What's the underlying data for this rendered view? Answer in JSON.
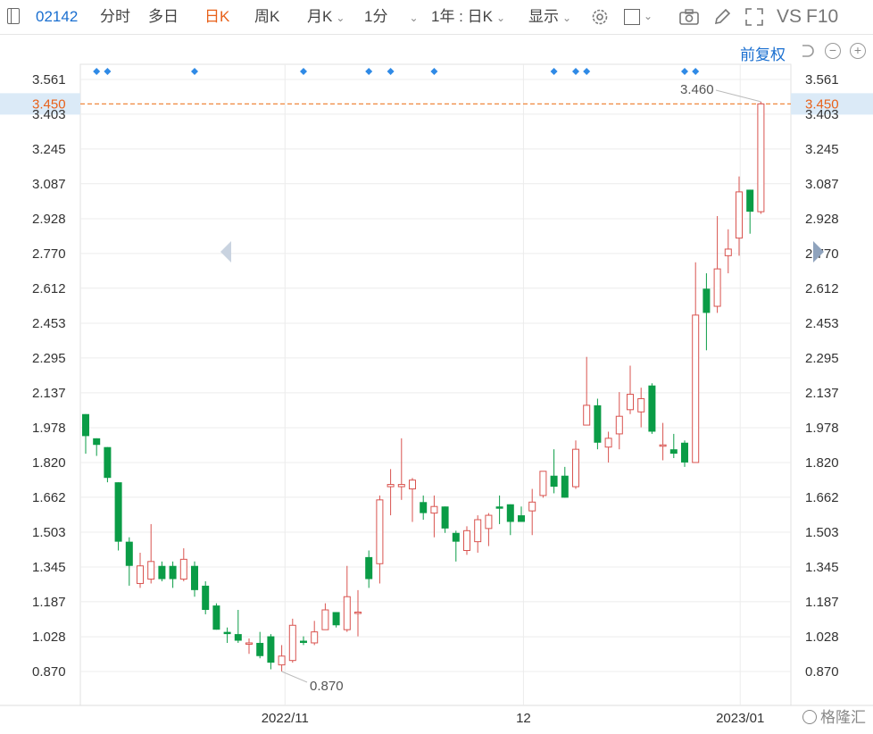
{
  "toolbar": {
    "code": "02142",
    "tabs": [
      "分时",
      "多日",
      "日K",
      "周K",
      "月K",
      "1分"
    ],
    "active_tab": "日K",
    "range_select": "1年 : 日K",
    "display_select": "显示",
    "vs_label": "VS",
    "f10_label": "F10",
    "icons": [
      "sidebar-toggle-icon",
      "gear-icon",
      "square-box-icon",
      "camera-icon",
      "pencil-icon",
      "fullscreen-icon"
    ]
  },
  "subbar": {
    "adjust_label": "前复权",
    "icons": [
      "undo-icon",
      "zoom-out-icon",
      "zoom-in-icon"
    ]
  },
  "watermark": "格隆汇",
  "chart_data": {
    "type": "candlestick",
    "ylim": [
      0.78,
      3.64
    ],
    "yticks": [
      "3.561",
      "3.403",
      "3.245",
      "3.087",
      "2.928",
      "2.770",
      "2.612",
      "2.453",
      "2.295",
      "2.137",
      "1.978",
      "1.820",
      "1.662",
      "1.503",
      "1.345",
      "1.187",
      "1.028",
      "0.870"
    ],
    "xtick_labels": [
      "2022/11",
      "12",
      "2023/01"
    ],
    "current_price": "3.450",
    "max_label": "3.460",
    "min_label": "0.870",
    "up_color": "#d9534f",
    "down_color": "#0a9c46",
    "ref_line_color": "#f0883e",
    "candles": [
      {
        "o": 2.04,
        "h": 2.04,
        "l": 1.86,
        "c": 1.94
      },
      {
        "o": 1.93,
        "h": 1.93,
        "l": 1.85,
        "c": 1.9
      },
      {
        "o": 1.89,
        "h": 1.89,
        "l": 1.73,
        "c": 1.75
      },
      {
        "o": 1.73,
        "h": 1.73,
        "l": 1.42,
        "c": 1.46
      },
      {
        "o": 1.46,
        "h": 1.48,
        "l": 1.26,
        "c": 1.35
      },
      {
        "o": 1.27,
        "h": 1.41,
        "l": 1.25,
        "c": 1.35
      },
      {
        "o": 1.29,
        "h": 1.54,
        "l": 1.27,
        "c": 1.37
      },
      {
        "o": 1.35,
        "h": 1.37,
        "l": 1.28,
        "c": 1.29
      },
      {
        "o": 1.35,
        "h": 1.37,
        "l": 1.25,
        "c": 1.29
      },
      {
        "o": 1.29,
        "h": 1.43,
        "l": 1.28,
        "c": 1.38
      },
      {
        "o": 1.35,
        "h": 1.37,
        "l": 1.21,
        "c": 1.24
      },
      {
        "o": 1.26,
        "h": 1.28,
        "l": 1.13,
        "c": 1.15
      },
      {
        "o": 1.17,
        "h": 1.18,
        "l": 1.06,
        "c": 1.06
      },
      {
        "o": 1.05,
        "h": 1.07,
        "l": 1.0,
        "c": 1.04
      },
      {
        "o": 1.04,
        "h": 1.15,
        "l": 1.0,
        "c": 1.01
      },
      {
        "o": 1.0,
        "h": 1.02,
        "l": 0.95,
        "c": 1.0
      },
      {
        "o": 1.0,
        "h": 1.05,
        "l": 0.93,
        "c": 0.94
      },
      {
        "o": 1.03,
        "h": 1.04,
        "l": 0.88,
        "c": 0.91
      },
      {
        "o": 0.9,
        "h": 0.99,
        "l": 0.87,
        "c": 0.94
      },
      {
        "o": 0.92,
        "h": 1.11,
        "l": 0.91,
        "c": 1.08
      },
      {
        "o": 1.01,
        "h": 1.03,
        "l": 0.99,
        "c": 1.0
      },
      {
        "o": 1.0,
        "h": 1.1,
        "l": 0.99,
        "c": 1.05
      },
      {
        "o": 1.06,
        "h": 1.18,
        "l": 1.06,
        "c": 1.15
      },
      {
        "o": 1.14,
        "h": 1.14,
        "l": 1.07,
        "c": 1.08
      },
      {
        "o": 1.06,
        "h": 1.35,
        "l": 1.05,
        "c": 1.21
      },
      {
        "o": 1.14,
        "h": 1.24,
        "l": 1.03,
        "c": 1.14
      },
      {
        "o": 1.39,
        "h": 1.42,
        "l": 1.25,
        "c": 1.29
      },
      {
        "o": 1.36,
        "h": 1.67,
        "l": 1.27,
        "c": 1.65
      },
      {
        "o": 1.71,
        "h": 1.79,
        "l": 1.58,
        "c": 1.72
      },
      {
        "o": 1.71,
        "h": 1.93,
        "l": 1.65,
        "c": 1.72
      },
      {
        "o": 1.7,
        "h": 1.75,
        "l": 1.55,
        "c": 1.74
      },
      {
        "o": 1.64,
        "h": 1.67,
        "l": 1.56,
        "c": 1.59
      },
      {
        "o": 1.59,
        "h": 1.67,
        "l": 1.48,
        "c": 1.62
      },
      {
        "o": 1.62,
        "h": 1.62,
        "l": 1.5,
        "c": 1.52
      },
      {
        "o": 1.5,
        "h": 1.51,
        "l": 1.37,
        "c": 1.46
      },
      {
        "o": 1.42,
        "h": 1.53,
        "l": 1.4,
        "c": 1.51
      },
      {
        "o": 1.46,
        "h": 1.58,
        "l": 1.41,
        "c": 1.56
      },
      {
        "o": 1.52,
        "h": 1.59,
        "l": 1.44,
        "c": 1.58
      },
      {
        "o": 1.62,
        "h": 1.67,
        "l": 1.54,
        "c": 1.61
      },
      {
        "o": 1.63,
        "h": 1.63,
        "l": 1.49,
        "c": 1.55
      },
      {
        "o": 1.58,
        "h": 1.62,
        "l": 1.55,
        "c": 1.55
      },
      {
        "o": 1.6,
        "h": 1.7,
        "l": 1.49,
        "c": 1.64
      },
      {
        "o": 1.67,
        "h": 1.78,
        "l": 1.66,
        "c": 1.78
      },
      {
        "o": 1.76,
        "h": 1.88,
        "l": 1.68,
        "c": 1.71
      },
      {
        "o": 1.76,
        "h": 1.8,
        "l": 1.66,
        "c": 1.66
      },
      {
        "o": 1.71,
        "h": 1.92,
        "l": 1.7,
        "c": 1.88
      },
      {
        "o": 1.99,
        "h": 2.3,
        "l": 1.99,
        "c": 2.08
      },
      {
        "o": 2.08,
        "h": 2.11,
        "l": 1.88,
        "c": 1.91
      },
      {
        "o": 1.89,
        "h": 1.96,
        "l": 1.82,
        "c": 1.93
      },
      {
        "o": 1.95,
        "h": 2.14,
        "l": 1.88,
        "c": 2.03
      },
      {
        "o": 2.06,
        "h": 2.26,
        "l": 2.04,
        "c": 2.13
      },
      {
        "o": 2.05,
        "h": 2.16,
        "l": 1.98,
        "c": 2.11
      },
      {
        "o": 2.17,
        "h": 2.18,
        "l": 1.95,
        "c": 1.96
      },
      {
        "o": 1.9,
        "h": 2.0,
        "l": 1.83,
        "c": 1.9
      },
      {
        "o": 1.88,
        "h": 1.95,
        "l": 1.84,
        "c": 1.86
      },
      {
        "o": 1.91,
        "h": 1.92,
        "l": 1.8,
        "c": 1.82
      },
      {
        "o": 1.82,
        "h": 2.73,
        "l": 1.82,
        "c": 2.49
      },
      {
        "o": 2.61,
        "h": 2.68,
        "l": 2.33,
        "c": 2.5
      },
      {
        "o": 2.53,
        "h": 2.94,
        "l": 2.5,
        "c": 2.7
      },
      {
        "o": 2.76,
        "h": 2.88,
        "l": 2.68,
        "c": 2.79
      },
      {
        "o": 2.84,
        "h": 3.12,
        "l": 2.76,
        "c": 3.05
      },
      {
        "o": 3.06,
        "h": 3.06,
        "l": 2.86,
        "c": 2.96
      },
      {
        "o": 2.96,
        "h": 3.46,
        "l": 2.95,
        "c": 3.45
      }
    ],
    "markers_at": [
      1,
      2,
      10,
      20,
      26,
      28,
      32,
      43,
      45,
      46,
      55,
      56
    ]
  }
}
